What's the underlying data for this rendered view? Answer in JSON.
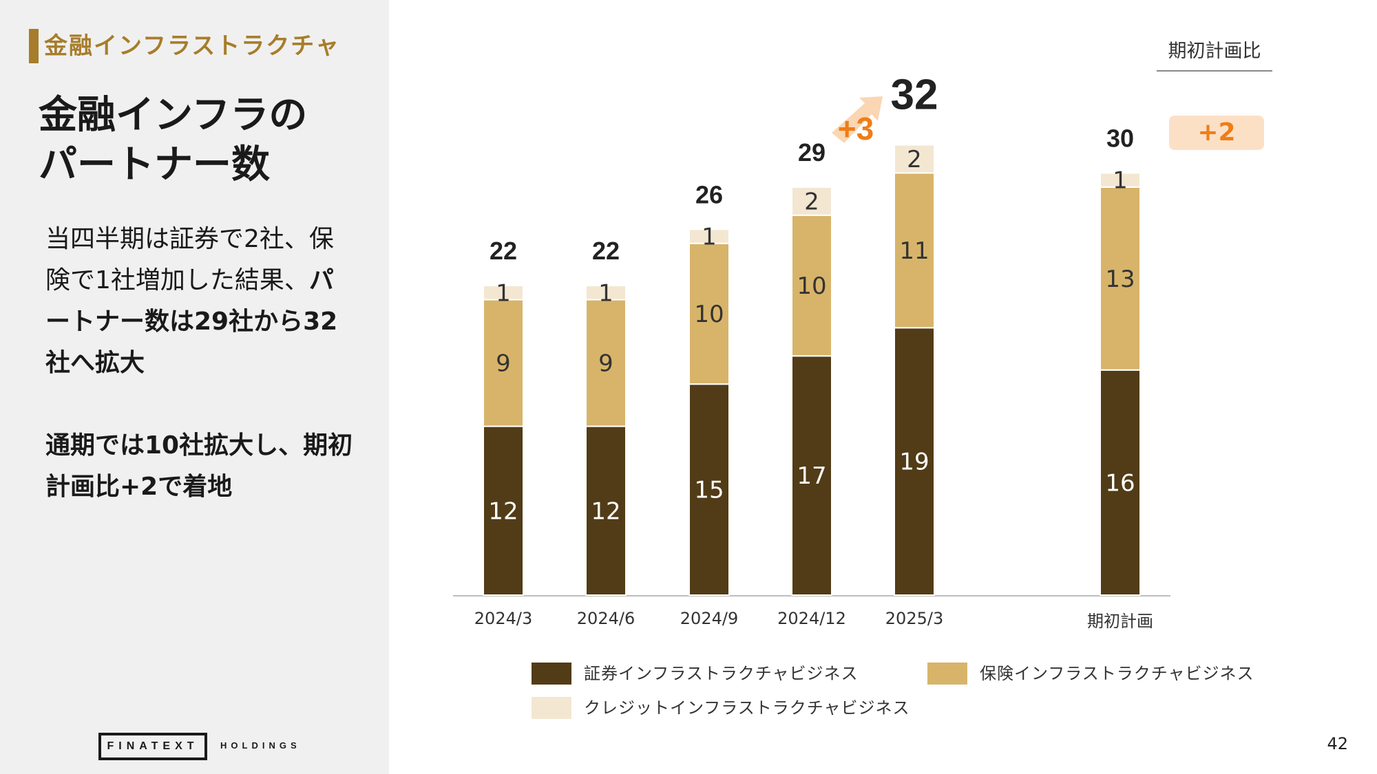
{
  "section_title": "金融インフラストラクチャ",
  "main_title": [
    "金融インフラの",
    "パートナー数"
  ],
  "body": {
    "p1_normal": "当四半期は証券で2社、保険で1社増加した結果、",
    "p1_bold": "パートナー数は29社から32社へ拡大",
    "p2_bold": "通期では10社拡大し、期初計画比+2で着地"
  },
  "logo": {
    "main": "FINATEXT",
    "sub": "HOLDINGS"
  },
  "page_number": "42",
  "reference": {
    "label": "期初計画比",
    "badge": "+2"
  },
  "chart_data": {
    "type": "bar",
    "stacked": true,
    "categories": [
      "2024/3",
      "2024/6",
      "2024/9",
      "2024/12",
      "2025/3",
      "期初計画"
    ],
    "series": [
      {
        "name": "証券インフラストラクチャビジネス",
        "values": [
          12,
          12,
          15,
          17,
          19,
          16
        ],
        "color": "#513c17",
        "label_color": "#ffffff"
      },
      {
        "name": "保険インフラストラクチャビジネス",
        "values": [
          9,
          9,
          10,
          10,
          11,
          13
        ],
        "color": "#d8b46a",
        "label_color": "#333333"
      },
      {
        "name": "クレジットインフラストラクチャビジネス",
        "values": [
          1,
          1,
          1,
          2,
          2,
          1
        ],
        "color": "#f3e7d2",
        "label_color": "#333333"
      }
    ],
    "totals": [
      22,
      22,
      26,
      29,
      32,
      30
    ],
    "annotation": {
      "text": "+3",
      "color": "#ef7d17"
    },
    "ylim": [
      0,
      32
    ],
    "legend_position": "bottom"
  }
}
